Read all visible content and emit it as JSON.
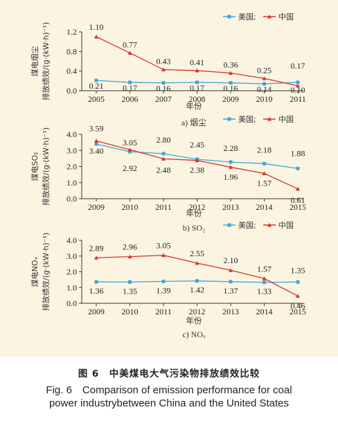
{
  "colors": {
    "usa": "#3aa8d8",
    "china": "#d6312a",
    "background": "#fbf4e1"
  },
  "legend": {
    "usa": "美国;",
    "china": "中国"
  },
  "chart_data": [
    {
      "type": "line",
      "subtitle": "a) 烟尘",
      "ylabel_line1": "煤电烟尘",
      "ylabel_line2": "排放绩效/(g·(kW·h)⁻¹)",
      "xlabel": "年份",
      "x": [
        2005,
        2006,
        2007,
        2008,
        2009,
        2010,
        2011
      ],
      "x_labels": [
        "2005",
        "2006",
        "2007",
        "2008",
        "2009",
        "2010",
        "2011"
      ],
      "ylim": [
        0,
        1.2
      ],
      "y_ticks": [
        0,
        0.4,
        0.8,
        1.2
      ],
      "y_tick_labels": [
        "0.0",
        "0.4",
        "0.8",
        "1.2"
      ],
      "series": [
        {
          "name": "美国",
          "key": "usa",
          "values": [
            0.21,
            0.17,
            0.16,
            0.17,
            0.16,
            0.14,
            0.17
          ],
          "labels": [
            "0.21",
            "0.17",
            "0.16",
            "0.17",
            "0.16",
            "0.14",
            "0.17"
          ]
        },
        {
          "name": "中国",
          "key": "china",
          "values": [
            1.1,
            0.77,
            0.43,
            0.41,
            0.36,
            0.25,
            0.1
          ],
          "labels": [
            "1.10",
            "0.77",
            "0.43",
            "0.41",
            "0.36",
            "0.25",
            "0.10"
          ]
        }
      ]
    },
    {
      "type": "line",
      "subtitle": "b) SO₂",
      "ylabel_line1": "煤电SO₂",
      "ylabel_line2": "排放绩效/(g·(kW·h)⁻¹)",
      "xlabel": "年份",
      "x": [
        2009,
        2010,
        2011,
        2012,
        2013,
        2014,
        2015
      ],
      "x_labels": [
        "2009",
        "2010",
        "2011",
        "2012",
        "2013",
        "2014",
        "2015"
      ],
      "ylim": [
        0,
        4
      ],
      "y_ticks": [
        0,
        1,
        2,
        3,
        4
      ],
      "y_tick_labels": [
        "0.0",
        "1.0",
        "2.0",
        "3.0",
        "4.0"
      ],
      "series": [
        {
          "name": "美国",
          "key": "usa",
          "values": [
            3.4,
            2.92,
            2.8,
            2.45,
            2.28,
            2.18,
            1.88
          ],
          "labels": [
            "3.40",
            "2.92",
            "2.80",
            "2.45",
            "2.28",
            "2.18",
            "1.88"
          ]
        },
        {
          "name": "中国",
          "key": "china",
          "values": [
            3.59,
            3.05,
            2.48,
            2.38,
            1.96,
            1.57,
            0.61
          ],
          "labels": [
            "3.59",
            "3.05",
            "2.48",
            "2.38",
            "1.96",
            "1.57",
            "0.61"
          ]
        }
      ]
    },
    {
      "type": "line",
      "subtitle": "c) NOₓ",
      "ylabel_line1": "煤电NOₓ",
      "ylabel_line2": "排放绩效/(g·(kW·h)⁻¹)",
      "xlabel": "年份",
      "x": [
        2009,
        2010,
        2011,
        2012,
        2013,
        2014,
        2015
      ],
      "x_labels": [
        "2009",
        "2010",
        "2011",
        "2012",
        "2013",
        "2014",
        "2015"
      ],
      "ylim": [
        0,
        4
      ],
      "y_ticks": [
        0,
        1,
        2,
        3,
        4
      ],
      "y_tick_labels": [
        "0.0",
        "1.0",
        "2.0",
        "3.0",
        "4.0"
      ],
      "series": [
        {
          "name": "美国",
          "key": "usa",
          "values": [
            1.36,
            1.35,
            1.39,
            1.42,
            1.37,
            1.33,
            1.35
          ],
          "labels": [
            "1.36",
            "1.35",
            "1.39",
            "1.42",
            "1.37",
            "1.33",
            "1.35"
          ]
        },
        {
          "name": "中国",
          "key": "china",
          "values": [
            2.89,
            2.96,
            3.05,
            2.55,
            2.1,
            1.57,
            0.46
          ],
          "labels": [
            "2.89",
            "2.96",
            "3.05",
            "2.55",
            "2.10",
            "1.57",
            "0.46"
          ]
        }
      ]
    }
  ],
  "caption": {
    "cn": "图 6　中美煤电大气污染物排放绩效比较",
    "en_line1": "Fig. 6　Comparison of emission performance for coal",
    "en_line2": "power industrybetween China and the United States"
  }
}
